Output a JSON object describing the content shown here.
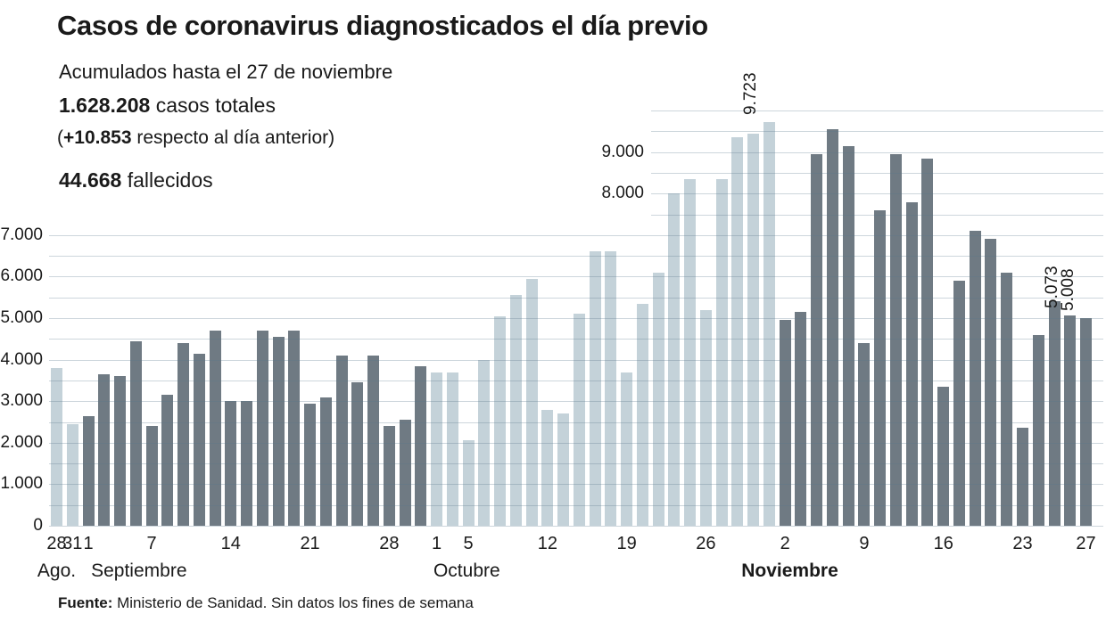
{
  "header": {
    "title": "Casos de coronavirus diagnosticados el día previo",
    "subtitle": "Acumulados hasta el 27 de noviembre",
    "total_cases_value": "1.628.208",
    "total_cases_label": " casos totales",
    "delta_open_paren": "(",
    "delta_value": "+10.853",
    "delta_rest": " respecto al día anterior)",
    "deaths_value": "44.668",
    "deaths_label": " fallecidos"
  },
  "footer": {
    "source_label": "Fuente:",
    "source_text": " Ministerio de Sanidad. Sin datos los fines de semana"
  },
  "chart_data": {
    "type": "bar",
    "title": "Casos de coronavirus diagnosticados el día previo",
    "ylim": [
      0,
      10000
    ],
    "grid_interval": 500,
    "full_width_grid_max": 7000,
    "grid_on": true,
    "y_axis_left_ticks": [
      {
        "label": "0",
        "value": 0
      },
      {
        "label": "1.000",
        "value": 1000
      },
      {
        "label": "2.000",
        "value": 2000
      },
      {
        "label": "3.000",
        "value": 3000
      },
      {
        "label": "4.000",
        "value": 4000
      },
      {
        "label": "5.000",
        "value": 5000
      },
      {
        "label": "6.000",
        "value": 6000
      },
      {
        "label": "7.000",
        "value": 7000
      }
    ],
    "y_axis_inner_ticks": [
      {
        "label": "8.000",
        "value": 8000
      },
      {
        "label": "9.000",
        "value": 9000
      }
    ],
    "colors": {
      "bar_light": "#c4d2d9",
      "bar_dark": "#6f7a83",
      "gridline": "#ccd8de",
      "grid_overlay": "rgba(90,120,140,0.3)",
      "text": "#1a1a1a"
    },
    "months": [
      {
        "name": "Agosto",
        "axis_label": "Ago.",
        "shade": "light",
        "label_bold": false,
        "label_center_index": 0
      },
      {
        "name": "Septiembre",
        "axis_label": "Septiembre",
        "shade": "dark",
        "label_bold": false,
        "label_center_index": 5.2
      },
      {
        "name": "Octubre",
        "axis_label": "Octubre",
        "shade": "light",
        "label_bold": false,
        "label_center_index": 25.9
      },
      {
        "name": "Noviembre",
        "axis_label": "Noviembre",
        "shade": "dark",
        "label_bold": true,
        "label_center_index": 46.3
      }
    ],
    "bars": [
      {
        "month": "Agosto",
        "day": 28,
        "value": 3800,
        "tick": "28"
      },
      {
        "month": "Agosto",
        "day": 31,
        "value": 2450,
        "tick": "31"
      },
      {
        "month": "Septiembre",
        "day": 1,
        "value": 2650,
        "tick": "1"
      },
      {
        "month": "Septiembre",
        "day": 2,
        "value": 3650
      },
      {
        "month": "Septiembre",
        "day": 3,
        "value": 3600
      },
      {
        "month": "Septiembre",
        "day": 4,
        "value": 4450
      },
      {
        "month": "Septiembre",
        "day": 7,
        "value": 2400,
        "tick": "7"
      },
      {
        "month": "Septiembre",
        "day": 8,
        "value": 3150
      },
      {
        "month": "Septiembre",
        "day": 9,
        "value": 4400
      },
      {
        "month": "Septiembre",
        "day": 10,
        "value": 4150
      },
      {
        "month": "Septiembre",
        "day": 11,
        "value": 4700
      },
      {
        "month": "Septiembre",
        "day": 14,
        "value": 3000,
        "tick": "14"
      },
      {
        "month": "Septiembre",
        "day": 15,
        "value": 3000
      },
      {
        "month": "Septiembre",
        "day": 16,
        "value": 4700
      },
      {
        "month": "Septiembre",
        "day": 17,
        "value": 4550
      },
      {
        "month": "Septiembre",
        "day": 18,
        "value": 4700
      },
      {
        "month": "Septiembre",
        "day": 21,
        "value": 2950,
        "tick": "21"
      },
      {
        "month": "Septiembre",
        "day": 22,
        "value": 3100
      },
      {
        "month": "Septiembre",
        "day": 23,
        "value": 4100
      },
      {
        "month": "Septiembre",
        "day": 24,
        "value": 3450
      },
      {
        "month": "Septiembre",
        "day": 25,
        "value": 4100
      },
      {
        "month": "Septiembre",
        "day": 28,
        "value": 2400,
        "tick": "28"
      },
      {
        "month": "Septiembre",
        "day": 29,
        "value": 2550
      },
      {
        "month": "Septiembre",
        "day": 30,
        "value": 3850
      },
      {
        "month": "Octubre",
        "day": 1,
        "value": 3700,
        "tick": "1"
      },
      {
        "month": "Octubre",
        "day": 2,
        "value": 3700
      },
      {
        "month": "Octubre",
        "day": 5,
        "value": 2050,
        "tick": "5"
      },
      {
        "month": "Octubre",
        "day": 6,
        "value": 4000
      },
      {
        "month": "Octubre",
        "day": 7,
        "value": 5050
      },
      {
        "month": "Octubre",
        "day": 8,
        "value": 5550
      },
      {
        "month": "Octubre",
        "day": 9,
        "value": 5950
      },
      {
        "month": "Octubre",
        "day": 12,
        "value": 2800,
        "tick": "12"
      },
      {
        "month": "Octubre",
        "day": 13,
        "value": 2700
      },
      {
        "month": "Octubre",
        "day": 14,
        "value": 5100
      },
      {
        "month": "Octubre",
        "day": 15,
        "value": 6600
      },
      {
        "month": "Octubre",
        "day": 16,
        "value": 6600
      },
      {
        "month": "Octubre",
        "day": 19,
        "value": 3700,
        "tick": "19"
      },
      {
        "month": "Octubre",
        "day": 20,
        "value": 5350
      },
      {
        "month": "Octubre",
        "day": 21,
        "value": 6100
      },
      {
        "month": "Octubre",
        "day": 22,
        "value": 8000
      },
      {
        "month": "Octubre",
        "day": 23,
        "value": 8350
      },
      {
        "month": "Octubre",
        "day": 26,
        "value": 5200,
        "tick": "26"
      },
      {
        "month": "Octubre",
        "day": 27,
        "value": 8350
      },
      {
        "month": "Octubre",
        "day": 28,
        "value": 9350
      },
      {
        "month": "Octubre",
        "day": 29,
        "value": 9450
      },
      {
        "month": "Octubre",
        "day": 30,
        "value": 9723,
        "annotation": "9.723"
      },
      {
        "month": "Noviembre",
        "day": 2,
        "value": 4950,
        "tick": "2"
      },
      {
        "month": "Noviembre",
        "day": 3,
        "value": 5150
      },
      {
        "month": "Noviembre",
        "day": 4,
        "value": 8950
      },
      {
        "month": "Noviembre",
        "day": 5,
        "value": 9550
      },
      {
        "month": "Noviembre",
        "day": 6,
        "value": 9150
      },
      {
        "month": "Noviembre",
        "day": 9,
        "value": 4400,
        "tick": "9"
      },
      {
        "month": "Noviembre",
        "day": 10,
        "value": 7600
      },
      {
        "month": "Noviembre",
        "day": 11,
        "value": 8950
      },
      {
        "month": "Noviembre",
        "day": 12,
        "value": 7800
      },
      {
        "month": "Noviembre",
        "day": 13,
        "value": 8850
      },
      {
        "month": "Noviembre",
        "day": 16,
        "value": 3350,
        "tick": "16"
      },
      {
        "month": "Noviembre",
        "day": 17,
        "value": 5900
      },
      {
        "month": "Noviembre",
        "day": 18,
        "value": 7100
      },
      {
        "month": "Noviembre",
        "day": 19,
        "value": 6900
      },
      {
        "month": "Noviembre",
        "day": 20,
        "value": 6100
      },
      {
        "month": "Noviembre",
        "day": 23,
        "value": 2350,
        "tick": "23"
      },
      {
        "month": "Noviembre",
        "day": 24,
        "value": 4600
      },
      {
        "month": "Noviembre",
        "day": 25,
        "value": 5400
      },
      {
        "month": "Noviembre",
        "day": 26,
        "value": 5073,
        "annotation": "5.073"
      },
      {
        "month": "Noviembre",
        "day": 27,
        "value": 5008,
        "tick": "27",
        "annotation": "5.008"
      }
    ]
  }
}
